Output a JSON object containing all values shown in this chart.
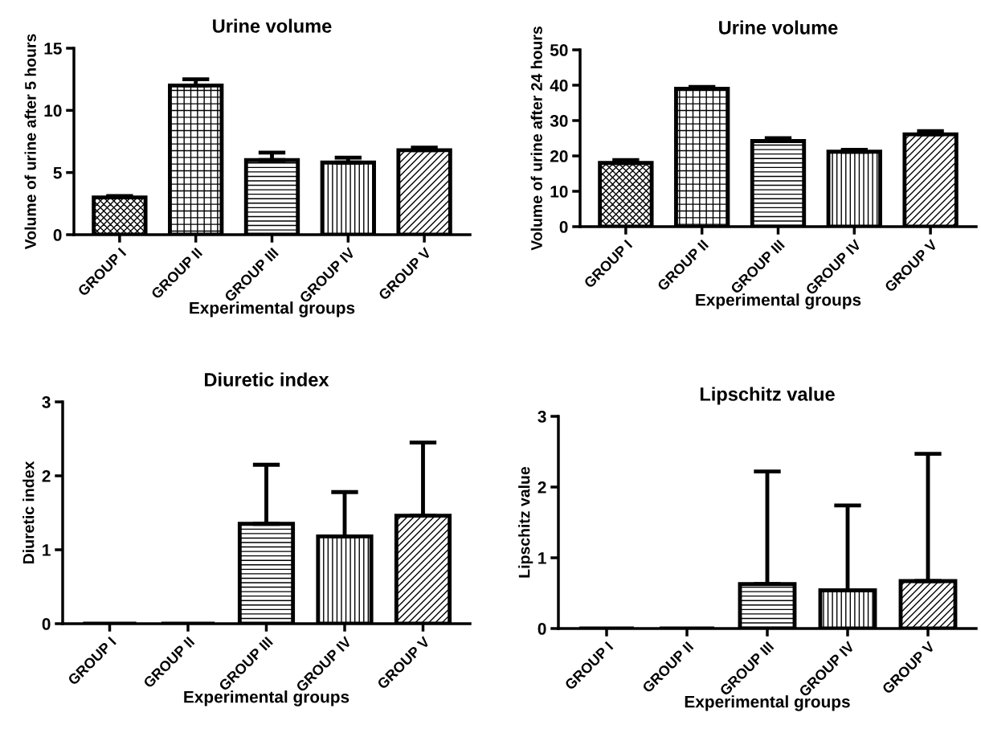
{
  "chart_data": [
    {
      "type": "bar",
      "title": "Urine volume",
      "xlabel": "Experimental groups",
      "ylabel": "Volume of urine after 5 hours",
      "categories": [
        "GROUP I",
        "GROUP II",
        "GROUP III",
        "GROUP IV",
        "GROUP V"
      ],
      "values": [
        3.0,
        12.0,
        6.0,
        5.8,
        6.8
      ],
      "errors": [
        [
          3.0,
          3.1
        ],
        [
          12.0,
          12.5
        ],
        [
          6.0,
          6.6
        ],
        [
          5.8,
          6.2
        ],
        [
          6.8,
          7.0
        ]
      ],
      "colors": [
        "#000000",
        "#000000",
        "#000000",
        "#000000",
        "#000000"
      ],
      "ylim": [
        0,
        15
      ],
      "yticks": [
        0,
        5,
        10,
        15
      ],
      "grid": false
    },
    {
      "type": "bar",
      "title": "Urine volume",
      "xlabel": "Experimental groups",
      "ylabel": "Volume of urine after 24 hours",
      "categories": [
        "GROUP I",
        "GROUP II",
        "GROUP III",
        "GROUP IV",
        "GROUP V"
      ],
      "values": [
        18.0,
        39.0,
        24.2,
        21.2,
        26.1
      ],
      "errors": [
        [
          18.0,
          18.8
        ],
        [
          39.0,
          39.5
        ],
        [
          24.2,
          25.0
        ],
        [
          21.2,
          21.7
        ],
        [
          26.1,
          27.0
        ]
      ],
      "colors": [
        "#000000",
        "#000000",
        "#000000",
        "#000000",
        "#000000"
      ],
      "ylim": [
        0,
        50
      ],
      "yticks": [
        0,
        10,
        20,
        30,
        40,
        50
      ],
      "grid": false
    },
    {
      "type": "bar",
      "title": "Diuretic index",
      "xlabel": "Experimental groups",
      "ylabel": "Diuretic index",
      "categories": [
        "GROUP I",
        "GROUP II",
        "GROUP III",
        "GROUP IV",
        "GROUP V"
      ],
      "values": [
        0,
        0,
        1.35,
        1.18,
        1.46
      ],
      "errors": [
        null,
        null,
        [
          1.35,
          2.15
        ],
        [
          1.18,
          1.78
        ],
        [
          1.46,
          2.45
        ]
      ],
      "colors": [
        "#000000",
        "#000000",
        "#000000",
        "#000000",
        "#000000"
      ],
      "ylim": [
        0,
        3
      ],
      "yticks": [
        0,
        1,
        2,
        3
      ],
      "grid": false
    },
    {
      "type": "bar",
      "title": "Lipschitz value",
      "xlabel": "Experimental groups",
      "ylabel": "Lipschitz value",
      "categories": [
        "GROUP I",
        "GROUP II",
        "GROUP III",
        "GROUP IV",
        "GROUP V"
      ],
      "values": [
        0,
        0,
        0.63,
        0.54,
        0.67
      ],
      "errors": [
        null,
        null,
        [
          0.63,
          2.22
        ],
        [
          0.54,
          1.74
        ],
        [
          0.67,
          2.47
        ]
      ],
      "colors": [
        "#000000",
        "#000000",
        "#000000",
        "#000000",
        "#000000"
      ],
      "ylim": [
        0,
        3
      ],
      "yticks": [
        0,
        1,
        2,
        3
      ],
      "grid": false
    }
  ]
}
